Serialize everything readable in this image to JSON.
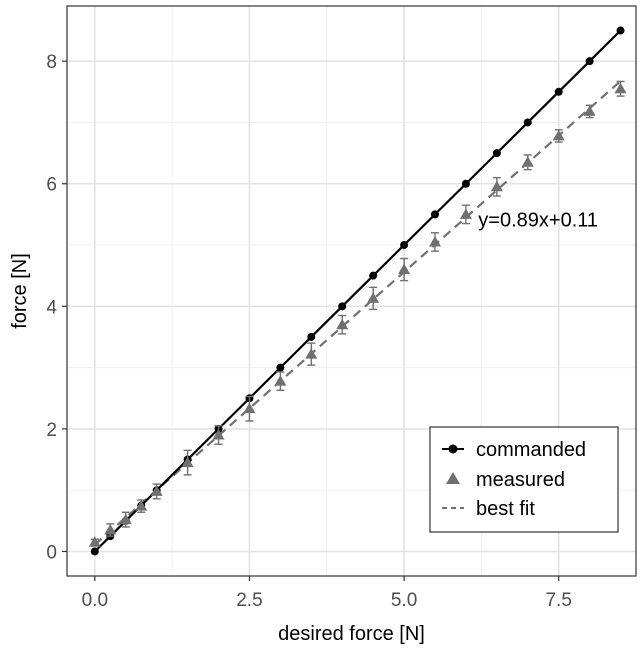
{
  "chart_data": {
    "type": "scatter",
    "xlabel": "desired force [N]",
    "ylabel": "force [N]",
    "xlim": [
      -0.45,
      8.75
    ],
    "ylim": [
      -0.4,
      8.9
    ],
    "x_ticks": [
      0.0,
      2.5,
      5.0,
      7.5
    ],
    "x_tick_labels": [
      "0.0",
      "2.5",
      "5.0",
      "7.5"
    ],
    "y_ticks": [
      0,
      2,
      4,
      6,
      8
    ],
    "y_tick_labels": [
      "0",
      "2",
      "4",
      "6",
      "8"
    ],
    "grid": true,
    "legend_position": "bottom-right",
    "annotation": {
      "text": "y=0.89x+0.11",
      "x": 6.2,
      "y": 5.3
    },
    "series": [
      {
        "name": "commanded",
        "kind": "line-points",
        "color": "#000000",
        "x": [
          0,
          0.25,
          0.5,
          0.75,
          1,
          1.5,
          2,
          2.5,
          3,
          3.5,
          4,
          4.5,
          5,
          5.5,
          6,
          6.5,
          7,
          7.5,
          8,
          8.5
        ],
        "y": [
          0,
          0.25,
          0.5,
          0.75,
          1,
          1.5,
          2,
          2.5,
          3,
          3.5,
          4,
          4.5,
          5,
          5.5,
          6,
          6.5,
          7,
          7.5,
          8,
          8.5
        ]
      },
      {
        "name": "measured",
        "kind": "triangles",
        "color": "#707070",
        "x": [
          0,
          0.25,
          0.5,
          0.75,
          1,
          1.5,
          2,
          2.5,
          3,
          3.5,
          4,
          4.5,
          5,
          5.5,
          6,
          6.5,
          7,
          7.5,
          8,
          8.5
        ],
        "y": [
          0.15,
          0.35,
          0.52,
          0.74,
          0.98,
          1.45,
          1.9,
          2.33,
          2.78,
          3.22,
          3.7,
          4.13,
          4.6,
          5.05,
          5.5,
          5.95,
          6.35,
          6.78,
          7.18,
          7.55
        ],
        "err": [
          0.05,
          0.1,
          0.12,
          0.1,
          0.12,
          0.2,
          0.15,
          0.2,
          0.15,
          0.18,
          0.15,
          0.18,
          0.18,
          0.15,
          0.15,
          0.15,
          0.12,
          0.1,
          0.1,
          0.12
        ]
      },
      {
        "name": "best fit",
        "kind": "dashed-line",
        "color": "#707070",
        "slope": 0.89,
        "intercept": 0.11,
        "x_range": [
          0,
          8.5
        ]
      }
    ]
  }
}
